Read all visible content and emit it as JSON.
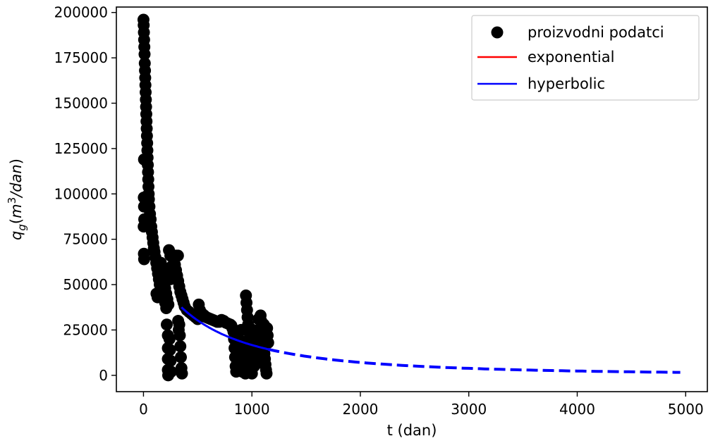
{
  "chart_data": {
    "type": "scatter",
    "xlabel": "t (dan)",
    "ylabel_parts": {
      "q": "q",
      "sub": "g",
      "open": "(",
      "m": "m",
      "sup": "3",
      "rest": "/dan",
      "close": ")"
    },
    "xlim": [
      -250,
      5200
    ],
    "ylim": [
      -9000,
      203000
    ],
    "xticks": [
      0,
      1000,
      2000,
      3000,
      4000,
      5000
    ],
    "yticks": [
      0,
      25000,
      50000,
      75000,
      100000,
      125000,
      150000,
      175000,
      200000
    ],
    "legend": {
      "placement": "top-right",
      "entries": [
        {
          "label": "proizvodni podatci",
          "kind": "marker",
          "color": "#000000"
        },
        {
          "label": "exponential",
          "kind": "line",
          "color": "#ff0000"
        },
        {
          "label": "hyperbolic",
          "kind": "line",
          "color": "#0000ff"
        }
      ]
    },
    "series": [
      {
        "name": "proizvodni podatci",
        "kind": "scatter",
        "color": "#000000",
        "points": [
          [
            0,
            196000
          ],
          [
            2,
            193000
          ],
          [
            4,
            189000
          ],
          [
            6,
            185000
          ],
          [
            8,
            181000
          ],
          [
            10,
            177000
          ],
          [
            12,
            172000
          ],
          [
            14,
            168000
          ],
          [
            16,
            164000
          ],
          [
            18,
            160000
          ],
          [
            20,
            156000
          ],
          [
            22,
            152000
          ],
          [
            24,
            148000
          ],
          [
            26,
            144000
          ],
          [
            28,
            140000
          ],
          [
            30,
            136000
          ],
          [
            32,
            132000
          ],
          [
            34,
            128000
          ],
          [
            36,
            124000
          ],
          [
            38,
            120000
          ],
          [
            40,
            116000
          ],
          [
            42,
            112000
          ],
          [
            44,
            108000
          ],
          [
            46,
            104000
          ],
          [
            48,
            100000
          ],
          [
            5,
            119000
          ],
          [
            3,
            98000
          ],
          [
            5,
            93000
          ],
          [
            7,
            86000
          ],
          [
            2,
            82000
          ],
          [
            4,
            67000
          ],
          [
            6,
            64000
          ],
          [
            50,
            97000
          ],
          [
            55,
            93000
          ],
          [
            60,
            89000
          ],
          [
            66,
            86000
          ],
          [
            72,
            82000
          ],
          [
            78,
            79000
          ],
          [
            84,
            76000
          ],
          [
            90,
            73000
          ],
          [
            96,
            70000
          ],
          [
            102,
            68000
          ],
          [
            110,
            65000
          ],
          [
            118,
            62000
          ],
          [
            126,
            59000
          ],
          [
            134,
            56000
          ],
          [
            142,
            53000
          ],
          [
            150,
            50000
          ],
          [
            158,
            47000
          ],
          [
            120,
            45000
          ],
          [
            130,
            43000
          ],
          [
            160,
            62000
          ],
          [
            170,
            58000
          ],
          [
            180,
            55000
          ],
          [
            190,
            51000
          ],
          [
            200,
            48000
          ],
          [
            210,
            45000
          ],
          [
            220,
            42000
          ],
          [
            230,
            39000
          ],
          [
            240,
            56000
          ],
          [
            250,
            53000
          ],
          [
            260,
            60000
          ],
          [
            270,
            57000
          ],
          [
            280,
            64000
          ],
          [
            290,
            61000
          ],
          [
            300,
            58000
          ],
          [
            310,
            55000
          ],
          [
            320,
            52000
          ],
          [
            330,
            49000
          ],
          [
            340,
            46000
          ],
          [
            350,
            44000
          ],
          [
            360,
            42000
          ],
          [
            370,
            40000
          ],
          [
            235,
            69000
          ],
          [
            248,
            66000
          ],
          [
            318,
            66000
          ],
          [
            300,
            66000
          ],
          [
            200,
            40000
          ],
          [
            210,
            37000
          ],
          [
            215,
            28000
          ],
          [
            225,
            22000
          ],
          [
            225,
            15000
          ],
          [
            225,
            9000
          ],
          [
            225,
            3000
          ],
          [
            228,
            0
          ],
          [
            240,
            20000
          ],
          [
            245,
            14000
          ],
          [
            250,
            8000
          ],
          [
            255,
            2000
          ],
          [
            330,
            28000
          ],
          [
            335,
            22000
          ],
          [
            340,
            16000
          ],
          [
            345,
            10000
          ],
          [
            350,
            4000
          ],
          [
            355,
            1000
          ],
          [
            320,
            30000
          ],
          [
            325,
            25000
          ],
          [
            380,
            38000
          ],
          [
            400,
            36000
          ],
          [
            420,
            35000
          ],
          [
            440,
            34000
          ],
          [
            460,
            33000
          ],
          [
            480,
            32000
          ],
          [
            500,
            31000
          ],
          [
            510,
            39000
          ],
          [
            520,
            36000
          ],
          [
            540,
            34000
          ],
          [
            560,
            33000
          ],
          [
            580,
            32000
          ],
          [
            600,
            31500
          ],
          [
            620,
            31000
          ],
          [
            640,
            30500
          ],
          [
            660,
            30000
          ],
          [
            680,
            29500
          ],
          [
            700,
            29500
          ],
          [
            720,
            30500
          ],
          [
            740,
            30000
          ],
          [
            760,
            29000
          ],
          [
            780,
            28500
          ],
          [
            800,
            28000
          ],
          [
            810,
            27500
          ],
          [
            820,
            26000
          ],
          [
            830,
            24000
          ],
          [
            835,
            20000
          ],
          [
            840,
            15000
          ],
          [
            845,
            10000
          ],
          [
            850,
            5000
          ],
          [
            855,
            2000
          ],
          [
            860,
            24000
          ],
          [
            870,
            22000
          ],
          [
            880,
            20000
          ],
          [
            890,
            18000
          ],
          [
            900,
            25000
          ],
          [
            910,
            15000
          ],
          [
            920,
            10000
          ],
          [
            930,
            5000
          ],
          [
            940,
            1000
          ],
          [
            945,
            44000
          ],
          [
            950,
            40000
          ],
          [
            955,
            36000
          ],
          [
            960,
            32000
          ],
          [
            965,
            28000
          ],
          [
            970,
            24000
          ],
          [
            975,
            20000
          ],
          [
            980,
            16000
          ],
          [
            985,
            12000
          ],
          [
            990,
            8000
          ],
          [
            995,
            4000
          ],
          [
            1000,
            1000
          ],
          [
            1010,
            25000
          ],
          [
            1020,
            22000
          ],
          [
            1030,
            19000
          ],
          [
            1040,
            16000
          ],
          [
            1050,
            13000
          ],
          [
            1060,
            10000
          ],
          [
            1070,
            7000
          ],
          [
            1080,
            33000
          ],
          [
            1085,
            30000
          ],
          [
            1090,
            27000
          ],
          [
            1095,
            24000
          ],
          [
            1100,
            21000
          ],
          [
            1105,
            18000
          ],
          [
            1110,
            15000
          ],
          [
            1115,
            12000
          ],
          [
            1120,
            9000
          ],
          [
            1125,
            6000
          ],
          [
            1130,
            3000
          ],
          [
            1135,
            1000
          ],
          [
            1140,
            26000
          ],
          [
            1145,
            22000
          ],
          [
            1150,
            18000
          ],
          [
            1060,
            31000
          ],
          [
            1110,
            28000
          ],
          [
            870,
            12000
          ],
          [
            890,
            6000
          ],
          [
            910,
            2000
          ],
          [
            960,
            10000
          ],
          [
            1020,
            5000
          ]
        ]
      },
      {
        "name": "hyperbolic",
        "kind": "fit",
        "color": "#0000ff",
        "fit": {
          "q0": 37500,
          "t0": 350,
          "D": 0.0015,
          "b": 0.45
        },
        "solid_range": [
          350,
          1150
        ],
        "dashed_range": [
          1150,
          4950
        ]
      }
    ]
  }
}
